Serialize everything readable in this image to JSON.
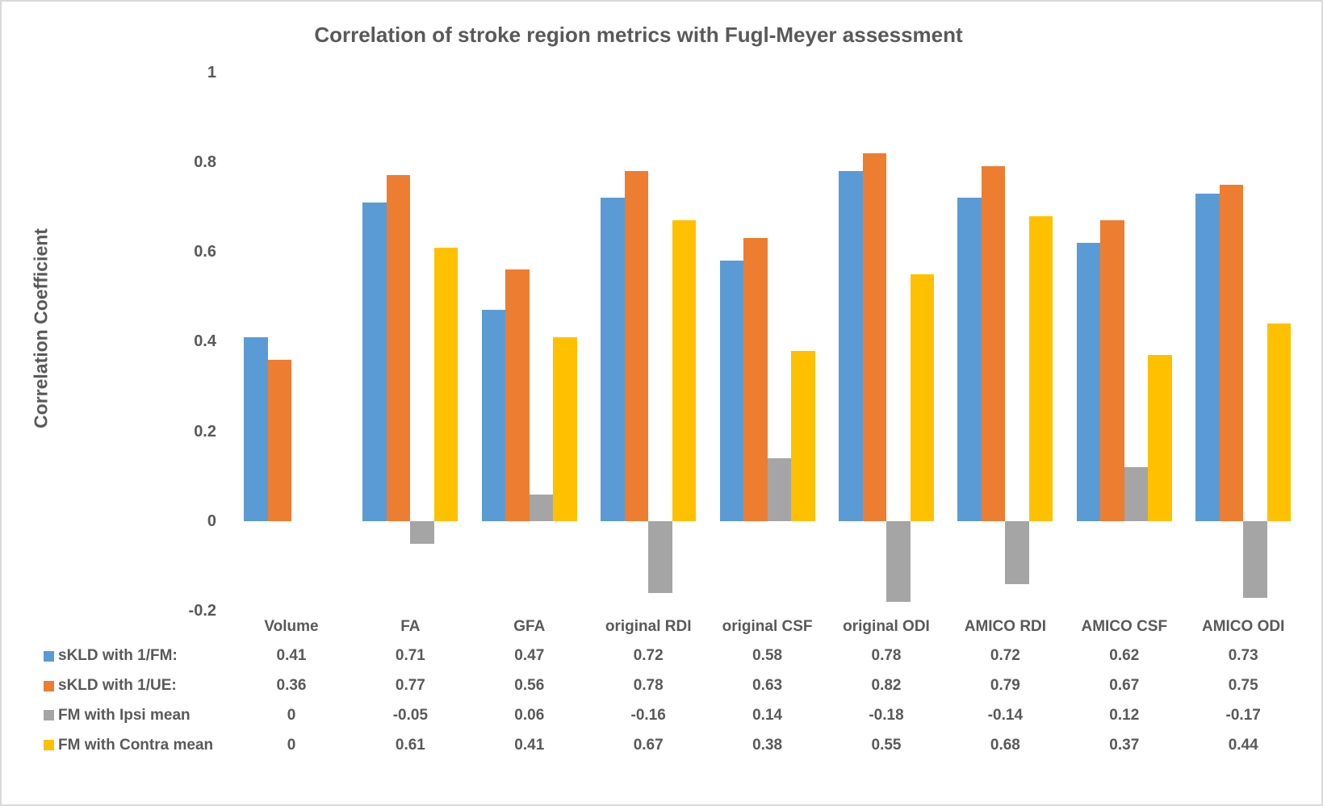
{
  "title": "Correlation of stroke region metrics with Fugl-Meyer assessment",
  "colors": {
    "text": "#595959",
    "frame_border": "#d9d9d9",
    "series_blue": "#5B9BD5",
    "series_orange": "#ED7D31",
    "series_gray": "#A5A5A5",
    "series_yellow": "#FFC000"
  },
  "chart_data": {
    "type": "bar",
    "title": "Correlation of stroke region metrics with Fugl-Meyer assessment",
    "xlabel": "",
    "ylabel": "Correlation Coefficient",
    "ylim": [
      -0.2,
      1
    ],
    "yticks": [
      1,
      0.8,
      0.6,
      0.4,
      0.2,
      0,
      -0.2
    ],
    "grid": false,
    "legend_position": "bottom-data-table",
    "categories": [
      "Volume",
      "FA",
      "GFA",
      "original RDI",
      "original CSF",
      "original ODI",
      "AMICO RDI",
      "AMICO CSF",
      "AMICO ODI"
    ],
    "series": [
      {
        "name": "sKLD with 1/FM:",
        "color": "#5B9BD5",
        "values": [
          0.41,
          0.71,
          0.47,
          0.72,
          0.58,
          0.78,
          0.72,
          0.62,
          0.73
        ]
      },
      {
        "name": "sKLD with 1/UE:",
        "color": "#ED7D31",
        "values": [
          0.36,
          0.77,
          0.56,
          0.78,
          0.63,
          0.82,
          0.79,
          0.67,
          0.75
        ]
      },
      {
        "name": "FM with Ipsi mean",
        "color": "#A5A5A5",
        "values": [
          0,
          -0.05,
          0.06,
          -0.16,
          0.14,
          -0.18,
          -0.14,
          0.12,
          -0.17
        ]
      },
      {
        "name": "FM with Contra mean",
        "color": "#FFC000",
        "values": [
          0,
          0.61,
          0.41,
          0.67,
          0.38,
          0.55,
          0.68,
          0.37,
          0.44
        ]
      }
    ]
  }
}
